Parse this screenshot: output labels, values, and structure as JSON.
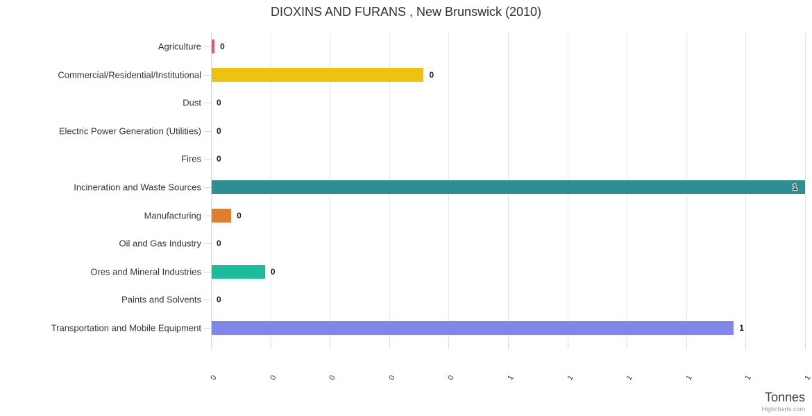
{
  "title": "DIOXINS AND FURANS , New Brunswick (2010)",
  "credits_label": "Highcharts.com",
  "chart_data": {
    "type": "bar",
    "orientation": "horizontal",
    "title": "DIOXINS AND FURANS , New Brunswick (2010)",
    "xlabel": "Tonnes",
    "ylabel": "",
    "xlim": [
      0,
      1.0
    ],
    "grid": true,
    "legend": false,
    "categories": [
      "Agriculture",
      "Commercial/Residential/Institutional",
      "Dust",
      "Electric Power Generation (Utilities)",
      "Fires",
      "Incineration and Waste Sources",
      "Manufacturing",
      "Oil and Gas Industry",
      "Ores and Mineral Industries",
      "Paints and Solvents",
      "Transportation and Mobile Equipment"
    ],
    "values": [
      0.006,
      0.358,
      0,
      0,
      0,
      1.0,
      0.034,
      0,
      0.091,
      0,
      0.88
    ],
    "value_labels": [
      "0",
      "0",
      "0",
      "0",
      "0",
      "1",
      "0",
      "0",
      "0",
      "0",
      "1"
    ],
    "bar_colors": [
      "#e4567c",
      "#eec213",
      "#cccccc",
      "#cccccc",
      "#cccccc",
      "#2d8f92",
      "#e07e2e",
      "#cccccc",
      "#1bbc9b",
      "#cccccc",
      "#8186e8"
    ],
    "x_ticks": [
      0,
      0.1,
      0.2,
      0.3,
      0.4,
      0.5,
      0.6,
      0.7,
      0.8,
      0.9,
      1.0
    ],
    "x_tick_labels": [
      "0",
      "0",
      "0",
      "0",
      "0",
      "1",
      "1",
      "1",
      "1",
      "1",
      "1"
    ],
    "x_tick_label_rotation": -60
  },
  "style": {
    "grid_color": "#e6e6e6",
    "axis_line_color": "#ccd6eb",
    "text_color": "#333333"
  }
}
